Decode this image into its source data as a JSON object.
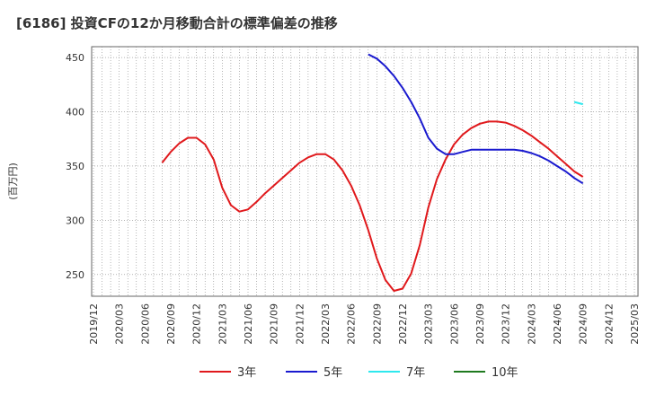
{
  "chart_data": {
    "type": "line",
    "title": "[6186]  投資CFの12か月移動合計の標準偏差の推移",
    "ylabel": "(百万円)",
    "xlabel": "",
    "ylim": [
      230,
      460
    ],
    "yticks": [
      250,
      300,
      350,
      400,
      450
    ],
    "xticks": [
      "2019/12",
      "2020/03",
      "2020/06",
      "2020/09",
      "2020/12",
      "2021/03",
      "2021/06",
      "2021/09",
      "2021/12",
      "2022/03",
      "2022/06",
      "2022/09",
      "2022/12",
      "2023/03",
      "2023/06",
      "2023/09",
      "2023/12",
      "2024/03",
      "2024/06",
      "2024/09",
      "2024/12",
      "2025/03"
    ],
    "grid": true,
    "legend_position": "bottom",
    "series": [
      {
        "name": "3年",
        "color": "#e0191c",
        "points": [
          [
            "2020/08",
            353
          ],
          [
            "2020/09",
            363
          ],
          [
            "2020/10",
            371
          ],
          [
            "2020/11",
            376
          ],
          [
            "2020/12",
            376
          ],
          [
            "2021/01",
            370
          ],
          [
            "2021/02",
            356
          ],
          [
            "2021/03",
            330
          ],
          [
            "2021/04",
            314
          ],
          [
            "2021/05",
            308
          ],
          [
            "2021/06",
            310
          ],
          [
            "2021/07",
            317
          ],
          [
            "2021/08",
            325
          ],
          [
            "2021/09",
            332
          ],
          [
            "2021/10",
            339
          ],
          [
            "2021/11",
            346
          ],
          [
            "2021/12",
            353
          ],
          [
            "2022/01",
            358
          ],
          [
            "2022/02",
            361
          ],
          [
            "2022/03",
            361
          ],
          [
            "2022/04",
            356
          ],
          [
            "2022/05",
            346
          ],
          [
            "2022/06",
            332
          ],
          [
            "2022/07",
            314
          ],
          [
            "2022/08",
            291
          ],
          [
            "2022/09",
            265
          ],
          [
            "2022/10",
            245
          ],
          [
            "2022/11",
            235
          ],
          [
            "2022/12",
            237
          ],
          [
            "2023/01",
            251
          ],
          [
            "2023/02",
            277
          ],
          [
            "2023/03",
            312
          ],
          [
            "2023/04",
            338
          ],
          [
            "2023/05",
            356
          ],
          [
            "2023/06",
            370
          ],
          [
            "2023/07",
            379
          ],
          [
            "2023/08",
            385
          ],
          [
            "2023/09",
            389
          ],
          [
            "2023/10",
            391
          ],
          [
            "2023/11",
            391
          ],
          [
            "2023/12",
            390
          ],
          [
            "2024/01",
            387
          ],
          [
            "2024/02",
            383
          ],
          [
            "2024/03",
            378
          ],
          [
            "2024/04",
            372
          ],
          [
            "2024/05",
            366
          ],
          [
            "2024/06",
            359
          ],
          [
            "2024/07",
            352
          ],
          [
            "2024/08",
            345
          ],
          [
            "2024/09",
            340
          ]
        ]
      },
      {
        "name": "5年",
        "color": "#1a1acf",
        "points": [
          [
            "2022/08",
            453
          ],
          [
            "2022/09",
            449
          ],
          [
            "2022/10",
            442
          ],
          [
            "2022/11",
            433
          ],
          [
            "2022/12",
            422
          ],
          [
            "2023/01",
            409
          ],
          [
            "2023/02",
            394
          ],
          [
            "2023/03",
            376
          ],
          [
            "2023/04",
            366
          ],
          [
            "2023/05",
            361
          ],
          [
            "2023/06",
            361
          ],
          [
            "2023/07",
            363
          ],
          [
            "2023/08",
            365
          ],
          [
            "2023/09",
            365
          ],
          [
            "2023/10",
            365
          ],
          [
            "2023/11",
            365
          ],
          [
            "2023/12",
            365
          ],
          [
            "2024/01",
            365
          ],
          [
            "2024/02",
            364
          ],
          [
            "2024/03",
            362
          ],
          [
            "2024/04",
            359
          ],
          [
            "2024/05",
            355
          ],
          [
            "2024/06",
            350
          ],
          [
            "2024/07",
            345
          ],
          [
            "2024/08",
            339
          ],
          [
            "2024/09",
            334
          ]
        ]
      },
      {
        "name": "7年",
        "color": "#2ee8ee",
        "points": [
          [
            "2024/08",
            409
          ],
          [
            "2024/09",
            407
          ]
        ]
      },
      {
        "name": "10年",
        "color": "#1f7a1f",
        "points": []
      }
    ]
  }
}
